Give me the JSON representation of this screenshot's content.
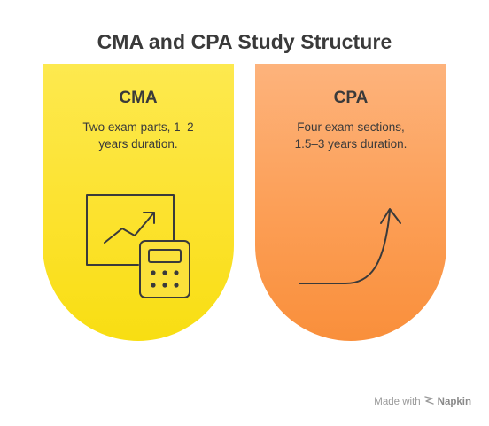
{
  "diagram": {
    "title": "CMA and CPA Study Structure",
    "cards": [
      {
        "title": "CMA",
        "text_lines": [
          "Two exam parts, 1–2",
          "years duration."
        ],
        "color": "#fce22e",
        "icon": "analytics-calculator-icon"
      },
      {
        "title": "CPA",
        "text_lines": [
          "Four exam sections,",
          "1.5–3 years duration."
        ],
        "color": "#fc9e55",
        "icon": "growth-curve-arrow-icon"
      }
    ]
  },
  "watermark": {
    "prefix": "Made with",
    "brand": "Napkin",
    "icon": "napkin-logo-icon"
  }
}
